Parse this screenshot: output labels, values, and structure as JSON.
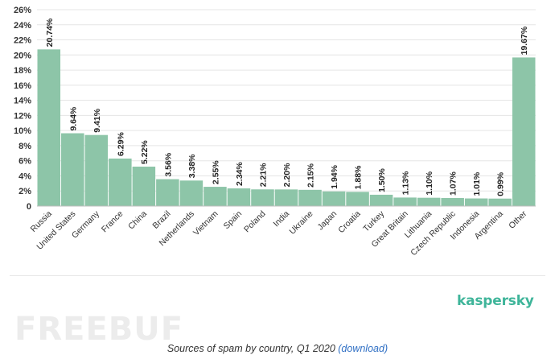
{
  "chart_data": {
    "type": "bar",
    "categories": [
      "Russia",
      "United States",
      "Germany",
      "France",
      "China",
      "Brazil",
      "Netherlands",
      "Vietnam",
      "Spain",
      "Poland",
      "India",
      "Ukraine",
      "Japan",
      "Croatia",
      "Turkey",
      "Great Britain",
      "Lithuania",
      "Czech Republic",
      "Indonesia",
      "Argentina",
      "Other"
    ],
    "values": [
      20.74,
      9.64,
      9.41,
      6.29,
      5.22,
      3.56,
      3.38,
      2.55,
      2.34,
      2.21,
      2.2,
      2.15,
      1.94,
      1.88,
      1.5,
      1.13,
      1.1,
      1.07,
      1.01,
      0.99,
      19.67
    ],
    "value_labels": [
      "20.74%",
      "9.64%",
      "9.41%",
      "6.29%",
      "5.22%",
      "3.56%",
      "3.38%",
      "2.55%",
      "2.34%",
      "2.21%",
      "2.20%",
      "2.15%",
      "1.94%",
      "1.88%",
      "1.50%",
      "1.13%",
      "1.10%",
      "1.07%",
      "1.01%",
      "0.99%",
      "19.67%"
    ],
    "yticks": [
      "0",
      "2%",
      "4%",
      "6%",
      "8%",
      "10%",
      "12%",
      "14%",
      "16%",
      "18%",
      "20%",
      "22%",
      "24%",
      "26%"
    ],
    "ylim": [
      0,
      26
    ],
    "grid": true,
    "bar_color": "#8dc5a8",
    "grid_color": "#e5e5e5"
  },
  "brand": "kaspersky",
  "brand_color": "#3fb59a",
  "watermark": "FREEBUF",
  "caption": {
    "text": "Sources of spam by country, Q1 2020",
    "link": "(download)"
  }
}
